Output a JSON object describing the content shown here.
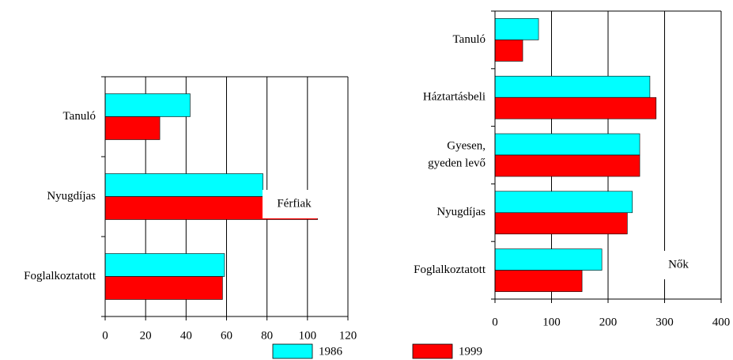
{
  "chart_data": [
    {
      "type": "barh",
      "categories": [
        "Tanuló",
        "Nyugdíjas",
        "Foglalkoztatott"
      ],
      "series": [
        {
          "name": "1986",
          "color": "#00ffff",
          "values": [
            42,
            78,
            59
          ]
        },
        {
          "name": "1999",
          "color": "#ff0000",
          "values": [
            27,
            105,
            58
          ]
        }
      ],
      "xlim": [
        0,
        120
      ],
      "xticks": [
        0,
        20,
        40,
        60,
        80,
        100,
        120
      ],
      "grid": true,
      "annotation": "Férfiak"
    },
    {
      "type": "barh",
      "categories": [
        "Tanuló",
        "Háztartásbeli",
        [
          "Gyesen,",
          "gyeden levő"
        ],
        "Nyugdíjas",
        "Foglalkoztatott"
      ],
      "series": [
        {
          "name": "1986",
          "color": "#00ffff",
          "values": [
            77,
            274,
            256,
            243,
            189
          ]
        },
        {
          "name": "1999",
          "color": "#ff0000",
          "values": [
            49,
            285,
            256,
            234,
            154
          ]
        }
      ],
      "xlim": [
        0,
        400
      ],
      "xticks": [
        0,
        100,
        200,
        300,
        400
      ],
      "grid": true,
      "annotation": "Nők"
    }
  ]
}
